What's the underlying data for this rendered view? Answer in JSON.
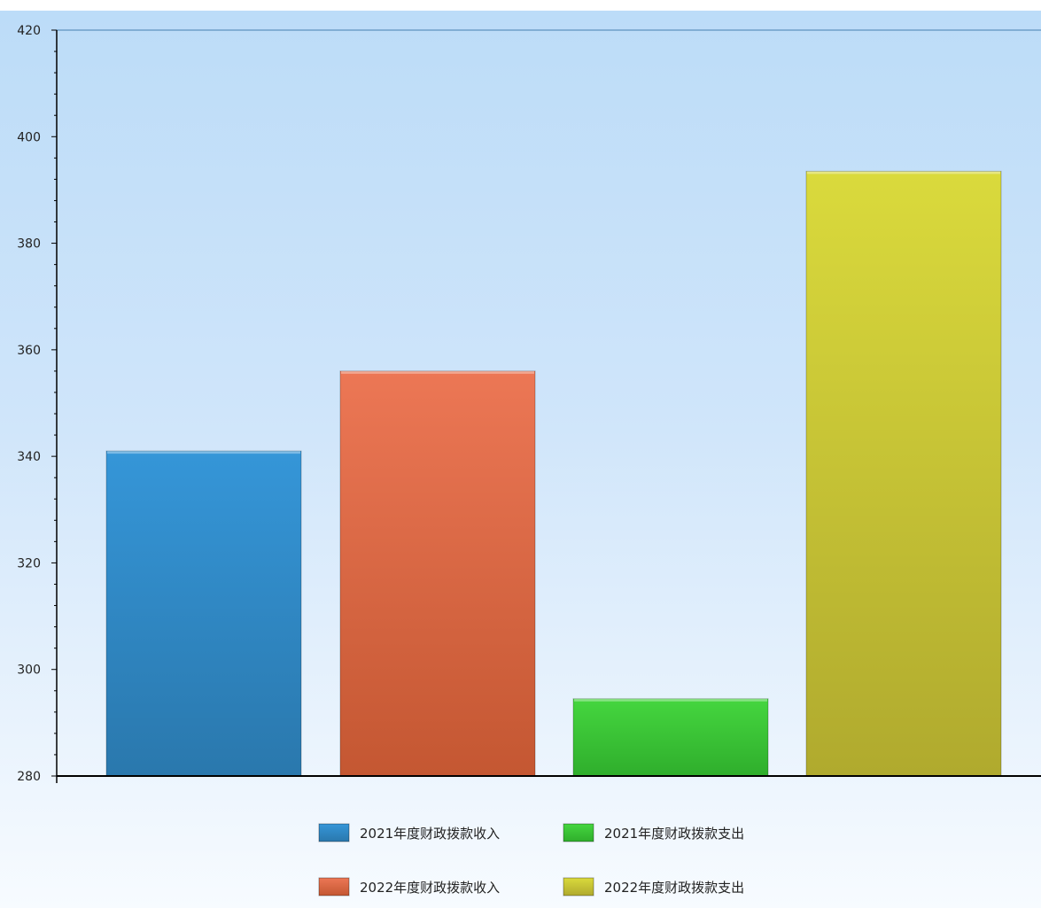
{
  "chart_data": {
    "type": "bar",
    "title": "",
    "xlabel": "",
    "ylabel": "",
    "ylim": [
      280,
      420
    ],
    "yticks": [
      280,
      300,
      320,
      340,
      360,
      380,
      400,
      420
    ],
    "grid": false,
    "legend_position": "bottom",
    "categories": [
      "2021年度财政拨款收入",
      "2022年度财政拨款收入",
      "2021年度财政拨款支出",
      "2022年度财政拨款支出"
    ],
    "values": [
      341,
      356,
      294.5,
      393.5
    ],
    "colors": [
      "#2f8ccc",
      "#e4674a",
      "#3ec93a",
      "#d0cc3a"
    ]
  }
}
